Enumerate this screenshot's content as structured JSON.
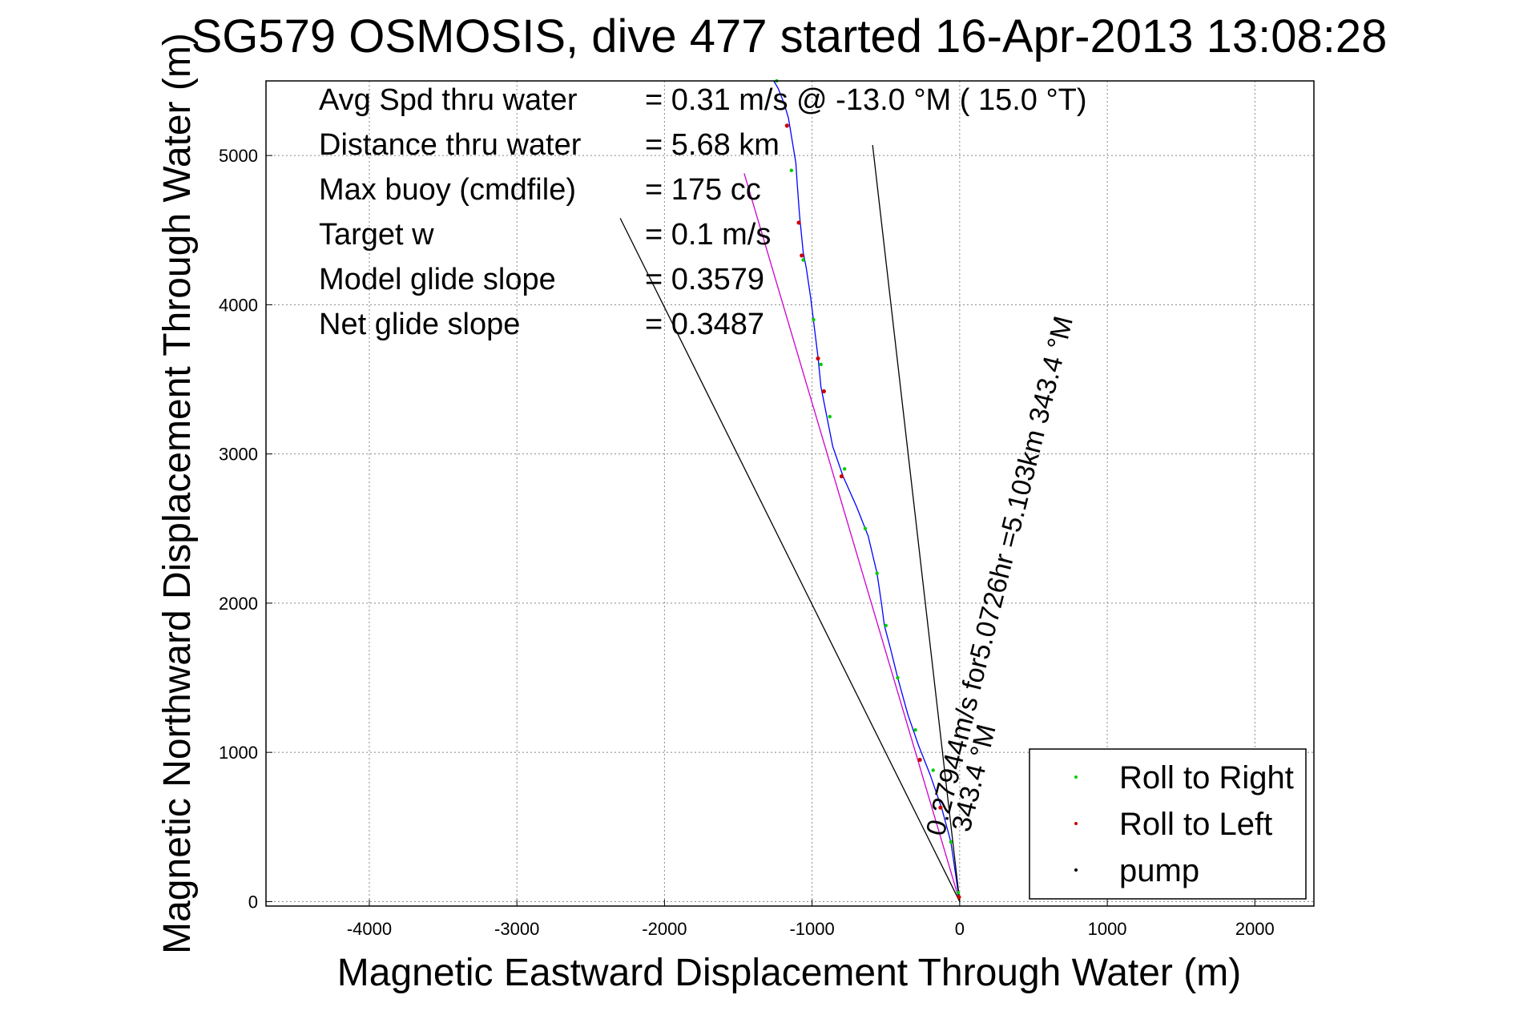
{
  "chart_data": {
    "type": "line",
    "title": "SG579 OSMOSIS, dive 477 started 16-Apr-2013 13:08:28",
    "xlabel": "Magnetic Eastward Displacement Through Water (m)",
    "ylabel": "Magnetic Northward Displacement Through Water (m)",
    "xlim": [
      -4700,
      2400
    ],
    "ylim": [
      -30,
      5500
    ],
    "xticks": [
      -4000,
      -3000,
      -2000,
      -1000,
      0,
      1000,
      2000
    ],
    "yticks": [
      0,
      1000,
      2000,
      3000,
      4000,
      5000
    ],
    "grid": true,
    "legend_position": "bottom-right",
    "legend": [
      {
        "name": "Roll to Right",
        "color": "#00cc00"
      },
      {
        "name": "Roll to Left",
        "color": "#cc0000"
      },
      {
        "name": "pump",
        "color": "#000000"
      }
    ],
    "stats": [
      {
        "label": "Avg Spd thru water",
        "value": "=  0.31 m/s @ -13.0 °M ( 15.0 °T)"
      },
      {
        "label": "Distance thru water",
        "value": "=  5.68 km"
      },
      {
        "label": "Max buoy (cmdfile)",
        "value": "= 175 cc"
      },
      {
        "label": "Target w",
        "value": "= 0.1 m/s"
      },
      {
        "label": "Model glide slope",
        "value": "= 0.3579"
      },
      {
        "label": "Net glide slope",
        "value": "= 0.3487"
      }
    ],
    "annotations": {
      "track_label": "0.27944m/s for5.0726hr =5.103km   343.4 °M",
      "heading_label_near": "343.4 °M"
    },
    "series": [
      {
        "color": "#0000ff",
        "x": [
          0,
          -10,
          -30,
          -60,
          -120,
          -200,
          -280,
          -350,
          -420,
          -470,
          -510,
          -530,
          -560,
          -620,
          -700,
          -790,
          -860,
          -900,
          -940,
          -960,
          -985,
          -1010,
          -1040,
          -1060,
          -1070,
          -1085,
          -1100,
          -1110,
          -1135,
          -1160,
          -1190,
          -1230,
          -1260
        ],
        "y": [
          0,
          60,
          200,
          400,
          620,
          850,
          1050,
          1250,
          1500,
          1700,
          1850,
          2000,
          2200,
          2450,
          2650,
          2850,
          3050,
          3250,
          3450,
          3650,
          3850,
          4050,
          4250,
          4350,
          4450,
          4600,
          4800,
          4950,
          5100,
          5250,
          5350,
          5450,
          5500
        ]
      },
      {
        "color": "#cc00cc",
        "x": [
          0,
          -1460
        ],
        "y": [
          0,
          4880
        ]
      },
      {
        "color": "#000000",
        "x": [
          0,
          -2300
        ],
        "y": [
          0,
          4580
        ]
      },
      {
        "color": "#000000",
        "x": [
          0,
          -590
        ],
        "y": [
          0,
          5070
        ]
      }
    ],
    "points_right": {
      "x": [
        -10,
        -60,
        -180,
        -300,
        -420,
        -500,
        -560,
        -640,
        -780,
        -880,
        -940,
        -990,
        -1060,
        -1140,
        -1240
      ],
      "y": [
        60,
        400,
        880,
        1150,
        1500,
        1850,
        2200,
        2500,
        2900,
        3250,
        3600,
        3900,
        4300,
        4900,
        5500
      ]
    },
    "points_left": {
      "x": [
        -5,
        -130,
        -270,
        -800,
        -920,
        -960,
        -1070,
        -1090,
        -1170
      ],
      "y": [
        30,
        630,
        950,
        2850,
        3420,
        3640,
        4330,
        4550,
        5200
      ]
    }
  }
}
